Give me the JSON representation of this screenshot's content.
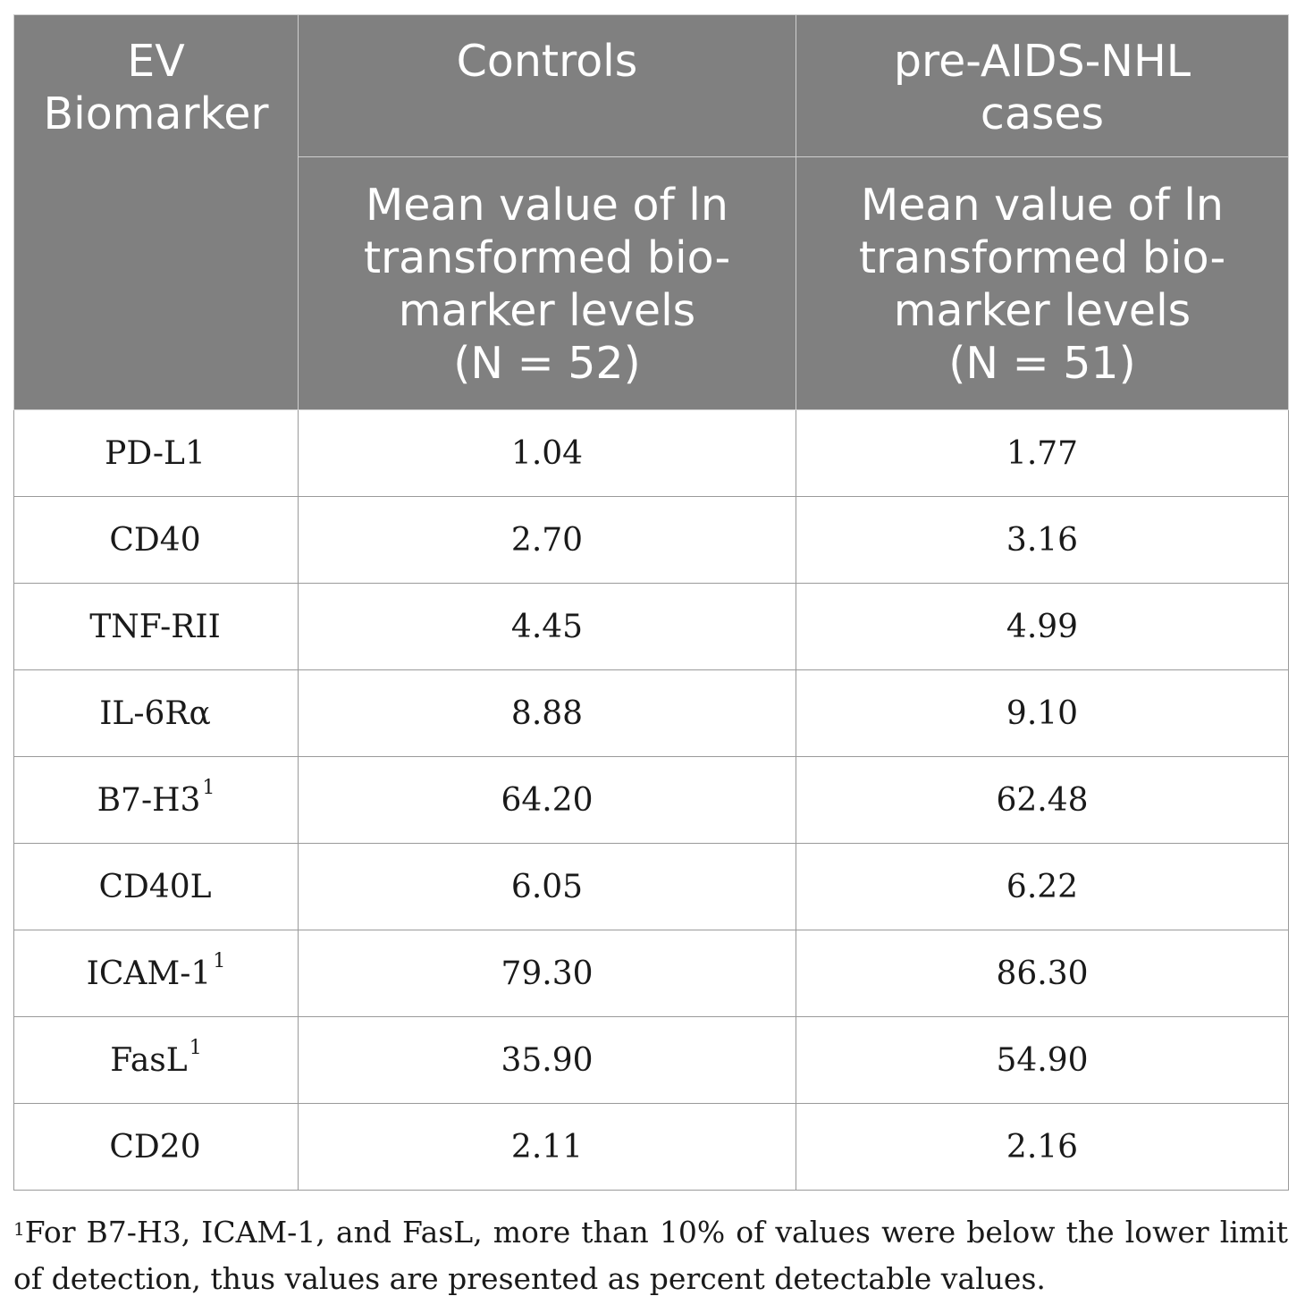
{
  "header": {
    "col1": [
      "EV",
      "Biomarker"
    ],
    "controls": "Controls",
    "cases": [
      "pre-AIDS-NHL",
      "cases"
    ],
    "controls_sub": [
      "Mean value of ln",
      "transformed bio-",
      "marker levels",
      "(N = 52)"
    ],
    "cases_sub": [
      "Mean value of ln",
      "transformed bio-",
      "marker levels",
      "(N = 51)"
    ]
  },
  "rows": [
    {
      "biomarker": "PD-L1",
      "sup": "",
      "controls": "1.04",
      "cases": "1.77"
    },
    {
      "biomarker": "CD40",
      "sup": "",
      "controls": "2.70",
      "cases": "3.16"
    },
    {
      "biomarker": "TNF-RII",
      "sup": "",
      "controls": "4.45",
      "cases": "4.99"
    },
    {
      "biomarker": "IL-6Rα",
      "sup": "",
      "controls": "8.88",
      "cases": "9.10"
    },
    {
      "biomarker": "B7-H3",
      "sup": "1",
      "controls": "64.20",
      "cases": "62.48"
    },
    {
      "biomarker": "CD40L",
      "sup": "",
      "controls": "6.05",
      "cases": "6.22"
    },
    {
      "biomarker": "ICAM-1",
      "sup": "1",
      "controls": "79.30",
      "cases": "86.30"
    },
    {
      "biomarker": "FasL",
      "sup": "1",
      "controls": "35.90",
      "cases": "54.90"
    },
    {
      "biomarker": "CD20",
      "sup": "",
      "controls": "2.11",
      "cases": "2.16"
    }
  ],
  "footnote": {
    "marker": "1",
    "text": "For B7-H3, ICAM-1, and FasL, more than 10% of values were below the lower limit of detection, thus values are presented as percent detectable values."
  }
}
